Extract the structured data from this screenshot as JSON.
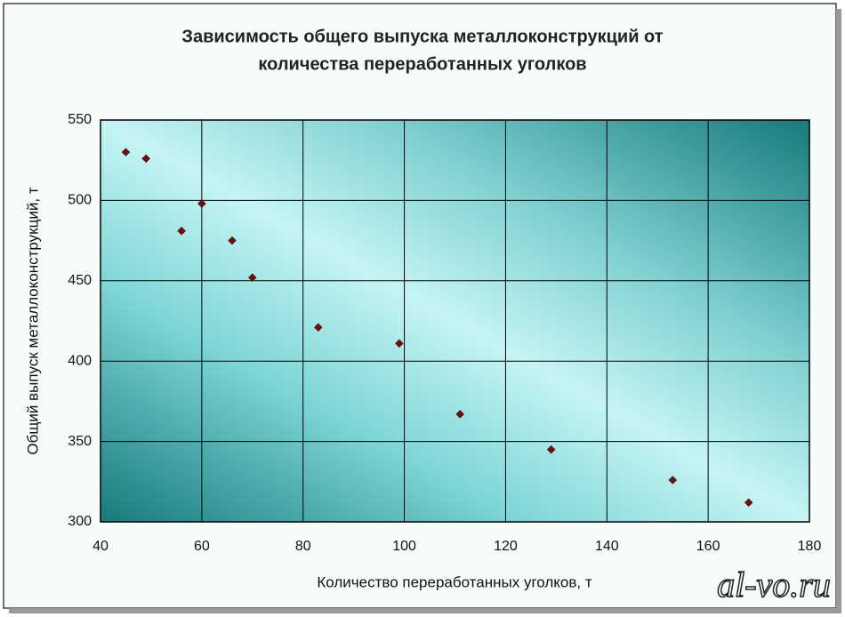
{
  "chart_data": {
    "type": "scatter",
    "title": [
      "Зависимость общего выпуска металлоконструкций от",
      "количества переработанных уголков"
    ],
    "x_label": "Количество переработанных уголков, т",
    "y_label": "Общий выпуск металлоконструкций, т",
    "x": [
      45,
      49,
      56,
      60,
      66,
      70,
      83,
      99,
      111,
      129,
      153,
      168
    ],
    "values": [
      530,
      526,
      481,
      498,
      475,
      452,
      421,
      411,
      367,
      345,
      326,
      312
    ],
    "color": "#6b0f0f",
    "xlim": [
      40,
      180
    ],
    "xticks": [
      40,
      60,
      80,
      100,
      120,
      140,
      160,
      180
    ],
    "ylim": [
      300,
      550
    ],
    "yticks": [
      300,
      350,
      400,
      450,
      500,
      550
    ],
    "grid": true,
    "watermark": "al-vo.ru"
  }
}
